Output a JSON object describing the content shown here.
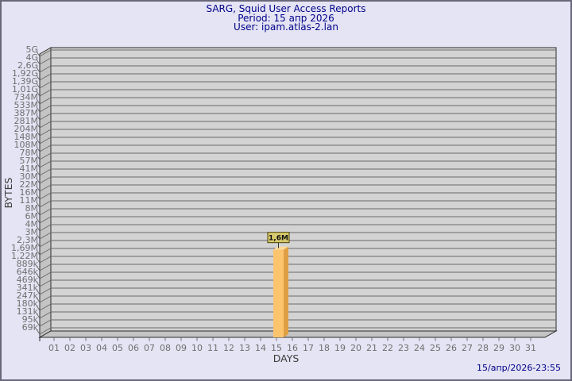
{
  "header": {
    "title": "SARG, Squid User Access Reports",
    "period": "Period: 15 апр 2026",
    "user": "User: ipam.atlas-2.lan"
  },
  "footer": {
    "timestamp": "15/апр/2026-23:55"
  },
  "colors": {
    "background": "#e4e4f4",
    "frame_border": "#68687a",
    "title_text": "#00008b",
    "plot": "#d3d3d3",
    "wall": "#c4c4c4",
    "grid": "#6a6a6a",
    "edge": "#2b2b2b",
    "tick": "#6f6f6f",
    "axis": "#3c3c3c",
    "bar": "#fcc46d",
    "barSide": "#df9f44",
    "barTop": "#fdda96",
    "labelBg": "#d8ca6e",
    "labelBorder": "#4a4000"
  },
  "chart_data": {
    "type": "bar",
    "title": "SARG, Squid User Access Reports",
    "subtitle_period": "Period: 15 апр 2026",
    "subtitle_user": "User: ipam.atlas-2.lan",
    "xlabel": "DAYS",
    "ylabel": "BYTES",
    "y_scale": "log",
    "grid": true,
    "y_tick_labels": [
      "5G",
      "4G",
      "2,6G",
      "1,92G",
      "1,39G",
      "1,01G",
      "734M",
      "533M",
      "387M",
      "281M",
      "204M",
      "148M",
      "108M",
      "78M",
      "57M",
      "41M",
      "30M",
      "22M",
      "16M",
      "11M",
      "8M",
      "6M",
      "4M",
      "3M",
      "2,3M",
      "1,69M",
      "1,22M",
      "889k",
      "646k",
      "469k",
      "341k",
      "247k",
      "180k",
      "131k",
      "95k",
      "69k"
    ],
    "x_tick_labels": [
      "01",
      "02",
      "03",
      "04",
      "05",
      "06",
      "07",
      "08",
      "09",
      "10",
      "11",
      "12",
      "13",
      "14",
      "15",
      "16",
      "17",
      "18",
      "19",
      "20",
      "21",
      "22",
      "23",
      "24",
      "25",
      "26",
      "27",
      "28",
      "29",
      "30",
      "31"
    ],
    "bars": [
      {
        "day": "15",
        "value_label": "1,6M",
        "approx_bytes": 1600000
      }
    ]
  }
}
